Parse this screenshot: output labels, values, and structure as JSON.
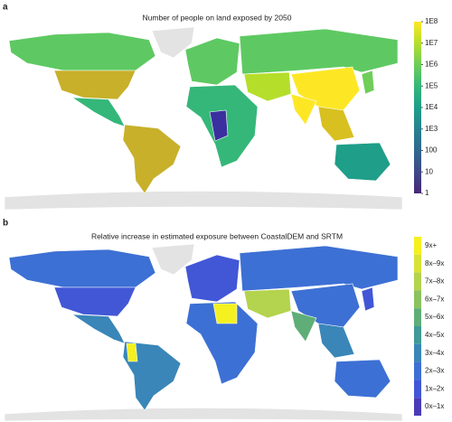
{
  "panel_a": {
    "label": "a",
    "title": "Number of people on land exposed by 2050",
    "colorbar": {
      "ticks": [
        "1E8",
        "1E7",
        "1E6",
        "1E5",
        "1E4",
        "1E3",
        "100",
        "10",
        "1"
      ],
      "colors": [
        "#fde725",
        "#b5de2b",
        "#6ece58",
        "#35b779",
        "#1f9e89",
        "#26828e",
        "#31688e",
        "#3e4989",
        "#482878"
      ]
    }
  },
  "panel_b": {
    "label": "b",
    "title": "Relative increase in estimated exposure between CoastalDEM and SRTM",
    "colorbar": {
      "ticks": [
        "9x+",
        "8x–9x",
        "7x–8x",
        "6x–7x",
        "5x–6x",
        "4x–5x",
        "3x–4x",
        "2x–3x",
        "1x–2x",
        "0x–1x"
      ],
      "colors": [
        "#f5f020",
        "#d8e33a",
        "#b4d34e",
        "#8cc260",
        "#5fae78",
        "#3f9a98",
        "#3a86b8",
        "#3d70d4",
        "#4257d6",
        "#4a3cb8"
      ]
    }
  }
}
